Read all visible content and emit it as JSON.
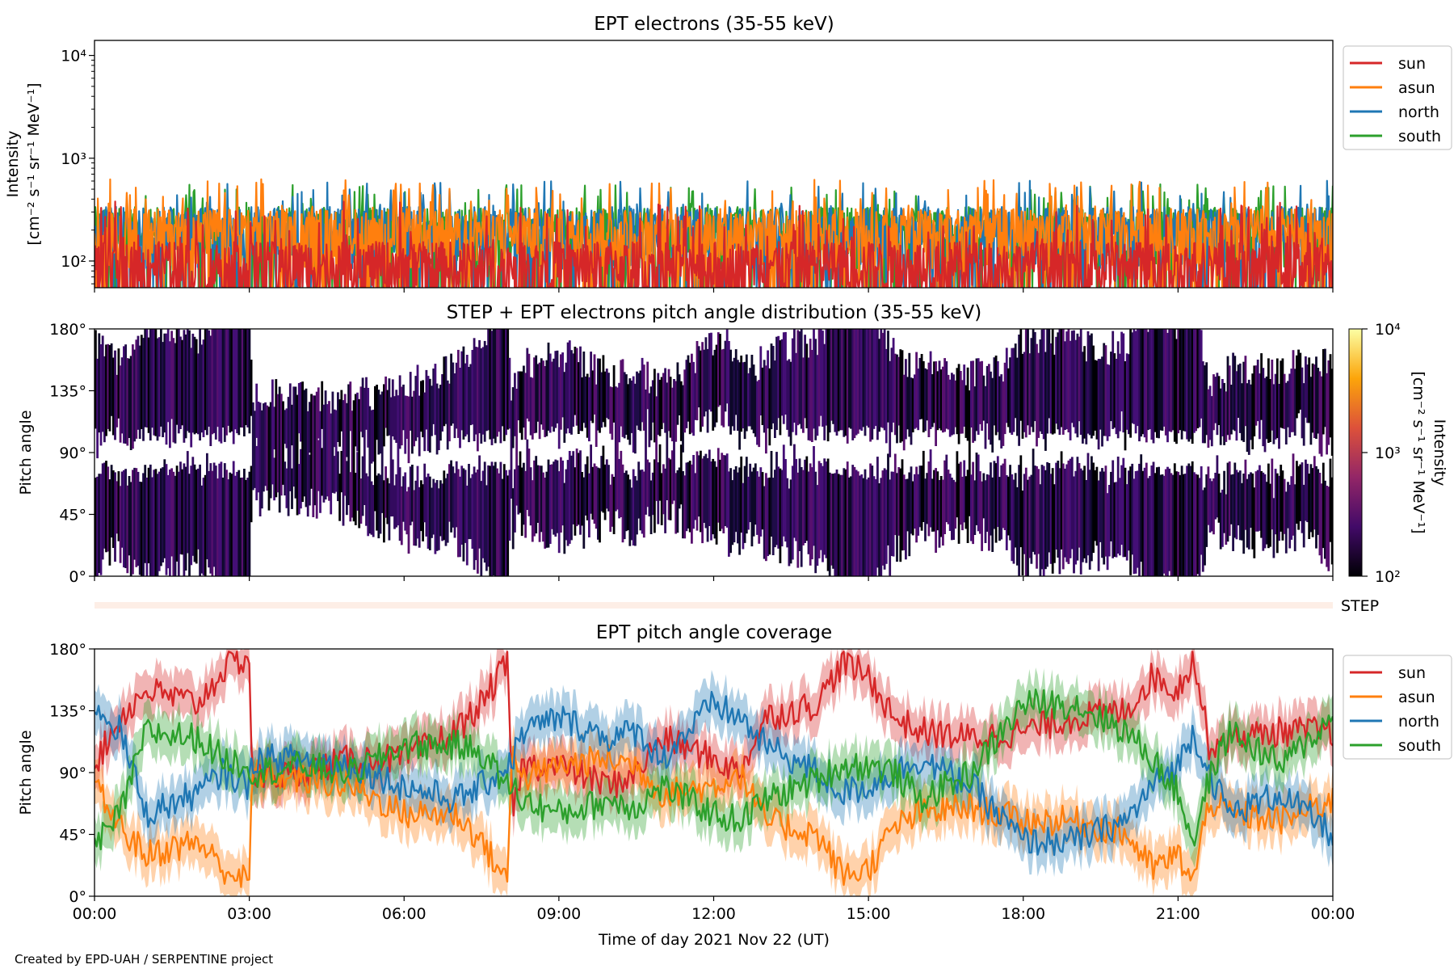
{
  "footer": "Created by EPD-UAH / SERPENTINE project",
  "step_label": "STEP",
  "chart_data": [
    {
      "type": "line",
      "title": "EPT electrons (35-55 keV)",
      "ylabel_line1": "Intensity",
      "ylabel_line2": "[cm⁻² s⁻¹ sr⁻¹ MeV⁻¹]",
      "yscale": "log",
      "ylim": [
        55,
        14000
      ],
      "yticks": [
        {
          "value": 100,
          "label": "10²"
        },
        {
          "value": 1000,
          "label": "10³"
        },
        {
          "value": 10000,
          "label": "10⁴"
        }
      ],
      "xlim": [
        0,
        24
      ],
      "legend_position": "outside-right",
      "series": [
        {
          "name": "sun",
          "color": "#d62728",
          "typical": 110,
          "spike_max": 380
        },
        {
          "name": "asun",
          "color": "#ff7f0e",
          "typical": 230,
          "spike_max": 630
        },
        {
          "name": "north",
          "color": "#1f77b4",
          "typical": 240,
          "spike_max": 620
        },
        {
          "name": "south",
          "color": "#2ca02c",
          "typical": 240,
          "spike_max": 560
        }
      ],
      "draw_order": [
        "south",
        "north",
        "asun",
        "sun"
      ]
    },
    {
      "type": "heatmap",
      "title": "STEP + EPT electrons pitch angle distribution (35-55 keV)",
      "ylabel": "Pitch angle",
      "ylim": [
        0,
        180
      ],
      "yticks": [
        {
          "value": 0,
          "label": "0°"
        },
        {
          "value": 45,
          "label": "45°"
        },
        {
          "value": 90,
          "label": "90°"
        },
        {
          "value": 135,
          "label": "135°"
        },
        {
          "value": 180,
          "label": "180°"
        }
      ],
      "xlim": [
        0,
        24
      ],
      "colorbar": {
        "label_line1": "Intensity",
        "label_line2": "[cm⁻² s⁻¹ sr⁻¹ MeV⁻¹]",
        "scale": "log",
        "range": [
          100,
          10000
        ],
        "ticks": [
          {
            "value": 100,
            "label": "10²"
          },
          {
            "value": 1000,
            "label": "10³"
          },
          {
            "value": 10000,
            "label": "10⁴"
          }
        ],
        "colormap": "inferno",
        "stops": [
          "#000004",
          "#420a68",
          "#932667",
          "#dd513a",
          "#fca50a",
          "#fcffa4"
        ]
      }
    },
    {
      "type": "line",
      "title": "EPT pitch angle coverage",
      "ylabel": "Pitch angle",
      "xlabel": "Time of day 2021 Nov 22 (UT)",
      "ylim": [
        0,
        180
      ],
      "yticks": [
        {
          "value": 0,
          "label": "0°"
        },
        {
          "value": 45,
          "label": "45°"
        },
        {
          "value": 90,
          "label": "90°"
        },
        {
          "value": 135,
          "label": "135°"
        },
        {
          "value": 180,
          "label": "180°"
        }
      ],
      "xlim": [
        0,
        24
      ],
      "xticks": [
        {
          "value": 0,
          "label": "00:00"
        },
        {
          "value": 3,
          "label": "03:00"
        },
        {
          "value": 6,
          "label": "06:00"
        },
        {
          "value": 9,
          "label": "09:00"
        },
        {
          "value": 12,
          "label": "12:00"
        },
        {
          "value": 15,
          "label": "15:00"
        },
        {
          "value": 18,
          "label": "18:00"
        },
        {
          "value": 21,
          "label": "21:00"
        },
        {
          "value": 24,
          "label": "00:00"
        }
      ],
      "legend_position": "outside-right",
      "series": [
        {
          "name": "sun",
          "color": "#d62728",
          "x": [
            0,
            0.5,
            1,
            2,
            2.5,
            3,
            3.05,
            4,
            5,
            6,
            7,
            7.5,
            8,
            8.1,
            8.3,
            9,
            10,
            10.5,
            11,
            12,
            12.5,
            13,
            14,
            14.5,
            15,
            15.5,
            16,
            17,
            18,
            19,
            20,
            20.5,
            21,
            21.3,
            21.6,
            22,
            23,
            24
          ],
          "y": [
            95,
            130,
            150,
            140,
            165,
            175,
            85,
            90,
            100,
            100,
            120,
            140,
            170,
            60,
            95,
            95,
            80,
            90,
            115,
            100,
            90,
            130,
            140,
            170,
            160,
            130,
            120,
            115,
            120,
            130,
            135,
            160,
            150,
            175,
            110,
            115,
            120,
            120
          ]
        },
        {
          "name": "asun",
          "color": "#ff7f0e",
          "x": [
            0,
            0.5,
            1,
            2,
            2.5,
            3,
            3.05,
            4,
            5,
            6,
            7,
            7.5,
            8,
            8.1,
            8.3,
            9,
            10,
            10.5,
            11,
            12,
            12.5,
            13,
            14,
            14.5,
            15,
            15.5,
            16,
            17,
            18,
            19,
            20,
            20.5,
            21,
            21.3,
            21.6,
            22,
            23,
            24
          ],
          "y": [
            80,
            50,
            30,
            40,
            20,
            10,
            90,
            85,
            80,
            60,
            60,
            40,
            10,
            115,
            85,
            95,
            100,
            95,
            75,
            80,
            90,
            55,
            45,
            15,
            20,
            50,
            60,
            65,
            55,
            55,
            45,
            20,
            30,
            10,
            70,
            60,
            55,
            70
          ]
        },
        {
          "name": "north",
          "color": "#1f77b4",
          "x": [
            0,
            0.5,
            1,
            2,
            2.5,
            3,
            3.05,
            4,
            5,
            6,
            7,
            7.5,
            8,
            8.1,
            8.3,
            9,
            10,
            10.5,
            11,
            12,
            12.5,
            13,
            14,
            14.5,
            15,
            15.5,
            16,
            17,
            18,
            19,
            20,
            20.5,
            21,
            21.3,
            21.6,
            22,
            23,
            24
          ],
          "y": [
            140,
            120,
            60,
            75,
            90,
            80,
            100,
            100,
            95,
            80,
            70,
            80,
            95,
            100,
            120,
            130,
            115,
            120,
            100,
            140,
            130,
            110,
            90,
            75,
            80,
            90,
            100,
            80,
            40,
            40,
            55,
            80,
            95,
            120,
            90,
            60,
            75,
            45
          ]
        },
        {
          "name": "south",
          "color": "#2ca02c",
          "x": [
            0,
            0.5,
            1,
            2,
            2.5,
            3,
            3.05,
            4,
            5,
            6,
            7,
            7.5,
            8,
            8.1,
            8.3,
            9,
            10,
            10.5,
            11,
            12,
            12.5,
            13,
            14,
            14.5,
            15,
            15.5,
            16,
            17,
            18,
            19,
            20,
            20.5,
            21,
            21.3,
            21.6,
            22,
            23,
            24
          ],
          "y": [
            35,
            60,
            120,
            115,
            100,
            95,
            90,
            95,
            90,
            110,
            110,
            105,
            80,
            80,
            70,
            60,
            70,
            65,
            80,
            60,
            55,
            70,
            85,
            95,
            95,
            90,
            70,
            90,
            140,
            140,
            120,
            100,
            75,
            40,
            85,
            120,
            95,
            130
          ]
        }
      ]
    }
  ]
}
